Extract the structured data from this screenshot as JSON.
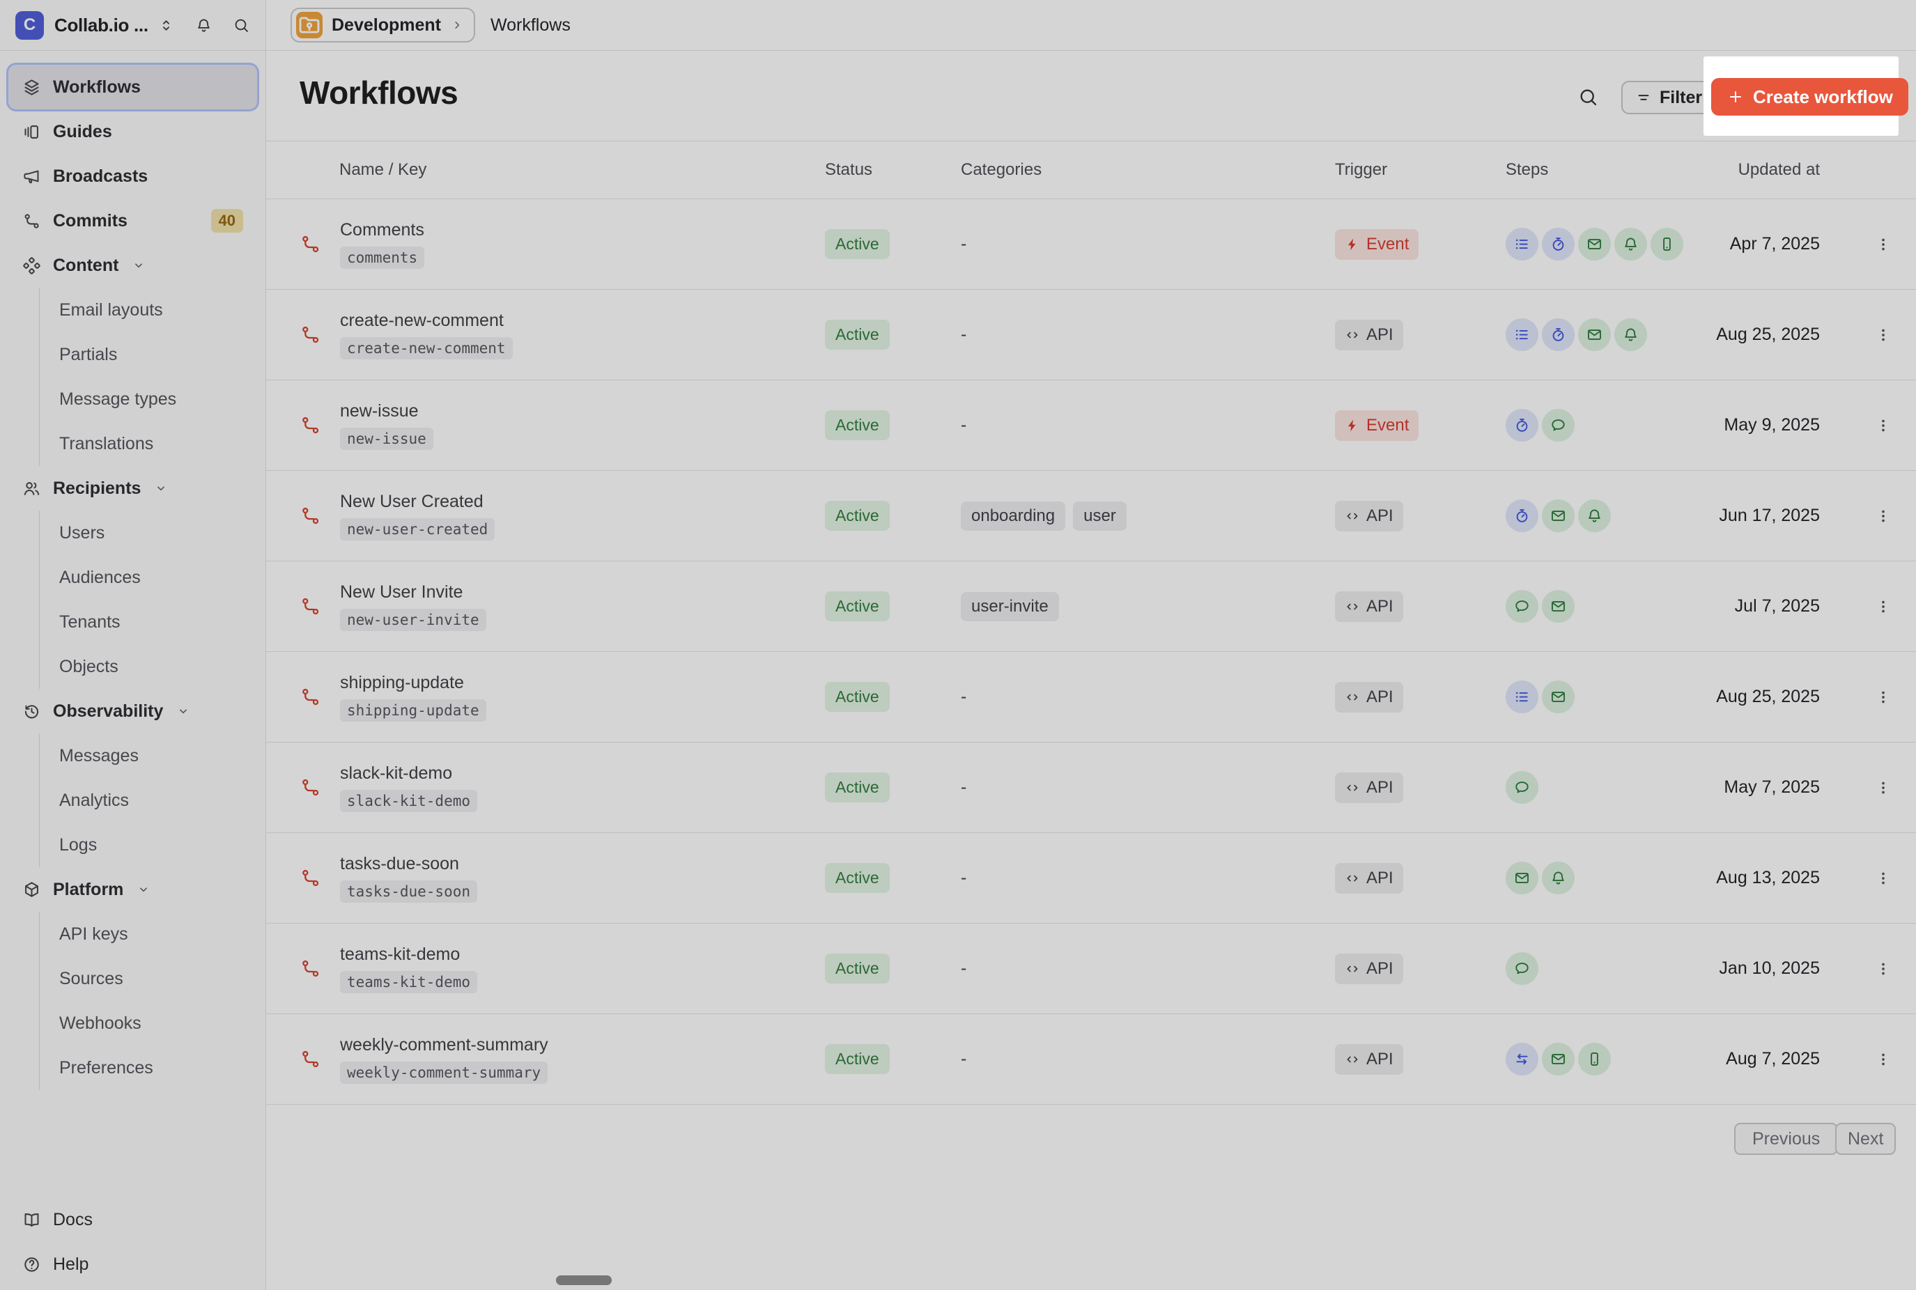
{
  "colors": {
    "accent": "#e8563c",
    "highlight_box": "#ffffff",
    "workspace_logo_bg": "#4f5dd8",
    "environment_icon_bg": "#f0a23c",
    "workflow_icon": "#d6402c",
    "status_active_bg": "#e3f3e5",
    "status_active_text": "#2f7d3b",
    "trigger_event_bg": "#fbe5e1",
    "trigger_event_text": "#d73a2b",
    "trigger_api_bg": "#ededef",
    "trigger_api_text": "#3f4147",
    "step_function_bg": "#e0e7fb",
    "step_function_icon": "#4053dd",
    "step_channel_bg": "#def1e1",
    "step_channel_icon": "#2a7a38",
    "commits_badge_bg": "#f1e2ac",
    "commits_badge_text": "#95670f"
  },
  "sidebar": {
    "workspace": {
      "initial": "C",
      "name": "Collab.io ...",
      "switcher_icon": "chevron-up-down-icon",
      "bell_icon": "bell-icon",
      "search_icon": "search-icon"
    },
    "items": [
      {
        "label": "Workflows",
        "icon": "layers-icon",
        "active": true
      },
      {
        "label": "Guides",
        "icon": "guides-icon"
      },
      {
        "label": "Broadcasts",
        "icon": "megaphone-icon"
      },
      {
        "label": "Commits",
        "icon": "branch-icon",
        "badge": "40"
      },
      {
        "label": "Content",
        "icon": "diamonds-icon",
        "expanded": true,
        "children": [
          "Email layouts",
          "Partials",
          "Message types",
          "Translations"
        ]
      },
      {
        "label": "Recipients",
        "icon": "users-icon",
        "expanded": true,
        "children": [
          "Users",
          "Audiences",
          "Tenants",
          "Objects"
        ]
      },
      {
        "label": "Observability",
        "icon": "history-icon",
        "expanded": true,
        "children": [
          "Messages",
          "Analytics",
          "Logs"
        ]
      },
      {
        "label": "Platform",
        "icon": "box-icon",
        "expanded": true,
        "children": [
          "API keys",
          "Sources",
          "Webhooks",
          "Preferences"
        ]
      }
    ],
    "footer": [
      {
        "label": "Docs",
        "icon": "book-icon"
      },
      {
        "label": "Help",
        "icon": "help-circle-icon"
      }
    ]
  },
  "topbar": {
    "environment": "Development",
    "environment_icon": "folder-icon",
    "separator_icon": "chevron-right-icon",
    "page": "Workflows"
  },
  "main": {
    "title": "Workflows",
    "search_icon": "search-icon",
    "filter": {
      "label": "Filter",
      "icon": "filter-icon"
    },
    "create": {
      "label": "Create workflow",
      "icon": "plus-icon"
    },
    "table": {
      "columns": [
        "Name / Key",
        "Status",
        "Categories",
        "Trigger",
        "Steps",
        "Updated at"
      ],
      "empty_value": "-",
      "rows": [
        {
          "name": "Comments",
          "key": "comments",
          "status": "Active",
          "categories": [],
          "trigger": {
            "style": "event",
            "label": "Event",
            "icon": "zap-icon"
          },
          "steps": [
            "list-icon",
            "stopwatch-icon",
            "mail-icon",
            "bell-icon",
            "phone-icon"
          ],
          "updated": "Apr 7, 2025"
        },
        {
          "name": "create-new-comment",
          "key": "create-new-comment",
          "status": "Active",
          "categories": [],
          "trigger": {
            "style": "api",
            "label": "API",
            "icon": "code-icon"
          },
          "steps": [
            "list-icon",
            "stopwatch-icon",
            "mail-icon",
            "bell-icon"
          ],
          "updated": "Aug 25, 2025"
        },
        {
          "name": "new-issue",
          "key": "new-issue",
          "status": "Active",
          "categories": [],
          "trigger": {
            "style": "event",
            "label": "Event",
            "icon": "zap-icon"
          },
          "steps": [
            "stopwatch-icon",
            "chat-icon"
          ],
          "updated": "May 9, 2025"
        },
        {
          "name": "New User Created",
          "key": "new-user-created",
          "status": "Active",
          "categories": [
            "onboarding",
            "user"
          ],
          "trigger": {
            "style": "api",
            "label": "API",
            "icon": "code-icon"
          },
          "steps": [
            "stopwatch-icon",
            "mail-icon",
            "bell-icon"
          ],
          "updated": "Jun 17, 2025"
        },
        {
          "name": "New User Invite",
          "key": "new-user-invite",
          "status": "Active",
          "categories": [
            "user-invite"
          ],
          "trigger": {
            "style": "api",
            "label": "API",
            "icon": "code-icon"
          },
          "steps": [
            "chat-icon",
            "mail-icon"
          ],
          "updated": "Jul 7, 2025"
        },
        {
          "name": "shipping-update",
          "key": "shipping-update",
          "status": "Active",
          "categories": [],
          "trigger": {
            "style": "api",
            "label": "API",
            "icon": "code-icon"
          },
          "steps": [
            "list-icon",
            "mail-icon"
          ],
          "updated": "Aug 25, 2025"
        },
        {
          "name": "slack-kit-demo",
          "key": "slack-kit-demo",
          "status": "Active",
          "categories": [],
          "trigger": {
            "style": "api",
            "label": "API",
            "icon": "code-icon"
          },
          "steps": [
            "chat-icon"
          ],
          "updated": "May 7, 2025"
        },
        {
          "name": "tasks-due-soon",
          "key": "tasks-due-soon",
          "status": "Active",
          "categories": [],
          "trigger": {
            "style": "api",
            "label": "API",
            "icon": "code-icon"
          },
          "steps": [
            "mail-icon",
            "bell-icon"
          ],
          "updated": "Aug 13, 2025"
        },
        {
          "name": "teams-kit-demo",
          "key": "teams-kit-demo",
          "status": "Active",
          "categories": [],
          "trigger": {
            "style": "api",
            "label": "API",
            "icon": "code-icon"
          },
          "steps": [
            "chat-icon"
          ],
          "updated": "Jan 10, 2025"
        },
        {
          "name": "weekly-comment-summary",
          "key": "weekly-comment-summary",
          "status": "Active",
          "categories": [],
          "trigger": {
            "style": "api",
            "label": "API",
            "icon": "code-icon"
          },
          "steps": [
            "swap-icon",
            "mail-icon",
            "phone-icon"
          ],
          "updated": "Aug 7, 2025"
        }
      ]
    },
    "pagination": {
      "previous": "Previous",
      "next": "Next"
    }
  }
}
